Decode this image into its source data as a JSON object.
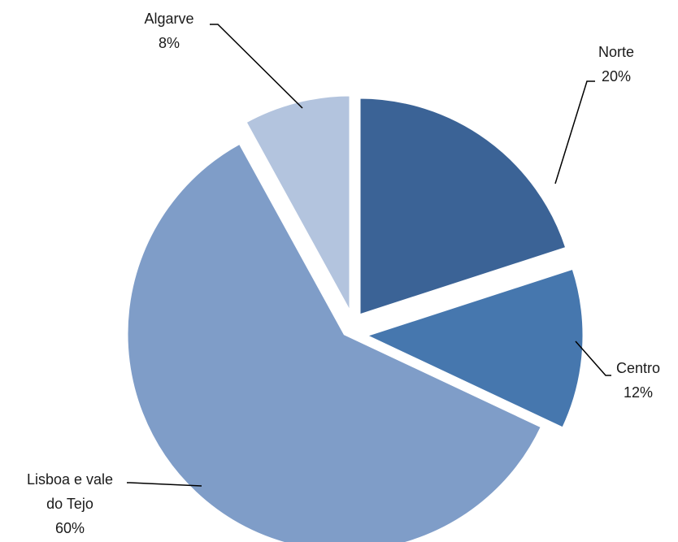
{
  "chart_data": {
    "type": "pie",
    "title": "",
    "categories": [
      "Norte",
      "Centro",
      "Lisboa e vale do Tejo",
      "Algarve"
    ],
    "values": [
      20,
      12,
      60,
      8
    ],
    "labels": [
      {
        "lines": [
          "Norte",
          "20%"
        ]
      },
      {
        "lines": [
          "Centro",
          "12%"
        ]
      },
      {
        "lines": [
          "Lisboa e vale",
          "do Tejo",
          "60%"
        ]
      },
      {
        "lines": [
          "Algarve",
          "8%"
        ]
      }
    ],
    "colors": [
      "#3b6396",
      "#4677ae",
      "#7f9dc8",
      "#b3c4de"
    ],
    "start": "12 o'clock",
    "direction": "clockwise",
    "exploded": true,
    "legend": "none"
  }
}
